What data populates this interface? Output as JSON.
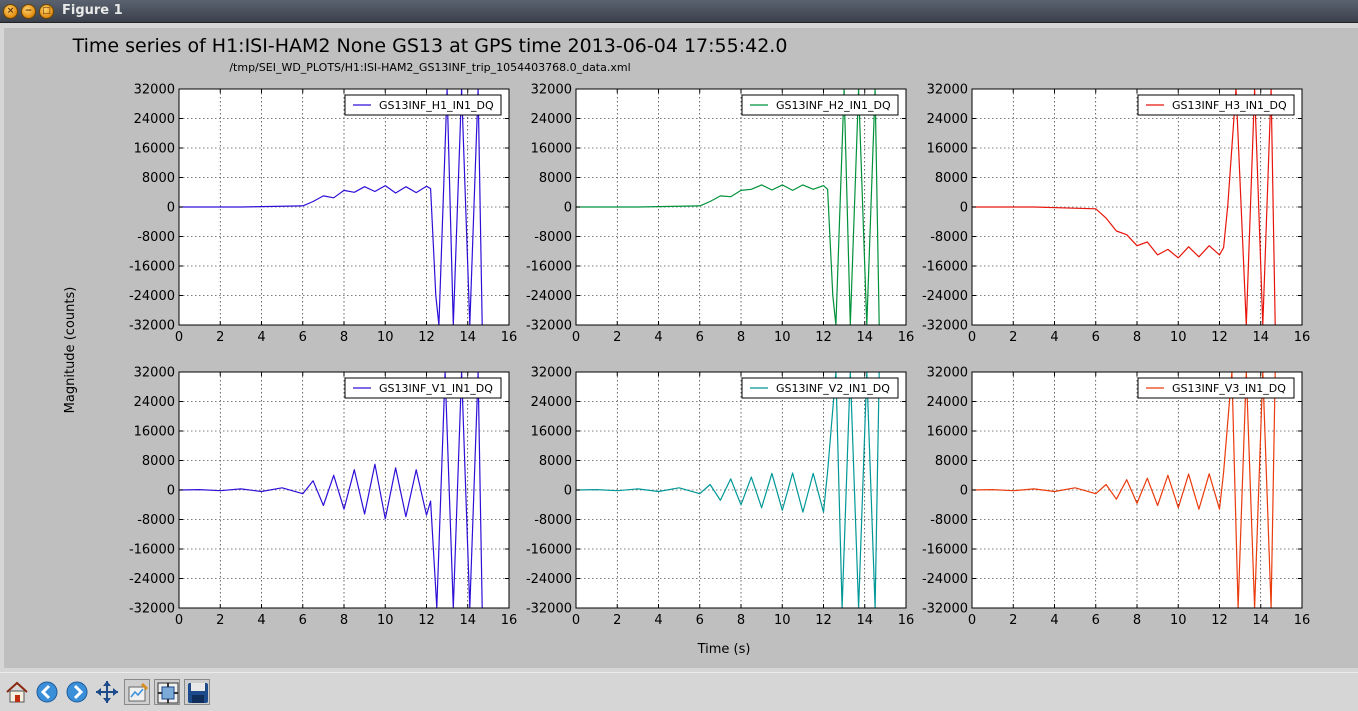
{
  "window": {
    "title": "Figure 1",
    "buttons": [
      "close-icon",
      "minimize-icon",
      "maximize-icon"
    ]
  },
  "toolbar": {
    "icons": [
      "home-icon",
      "back-arrow-icon",
      "forward-arrow-icon",
      "pan-move-icon",
      "configure-icon",
      "subplots-icon",
      "save-icon"
    ]
  },
  "chart_data": {
    "type": "line",
    "title": "Time series of H1:ISI-HAM2 None GS13 at GPS time 2013-06-04 17:55:42.0",
    "subtitle": "/tmp/SEI_WD_PLOTS/H1:ISI-HAM2_GS13INF_trip_1054403768.0_data.xml",
    "xlabel": "Time (s)",
    "ylabel": "Magnitude (counts)",
    "xlim": [
      0,
      16
    ],
    "ylim": [
      -32000,
      32000
    ],
    "xticks": [
      "0",
      "2",
      "4",
      "6",
      "8",
      "10",
      "12",
      "14",
      "16"
    ],
    "yticks": [
      "32000",
      "24000",
      "16000",
      "8000",
      "0",
      "-8000",
      "-16000",
      "-24000",
      "-32000"
    ],
    "grid": true,
    "legend_position": "upper right",
    "subplots": [
      {
        "name": "GS13INF_H1_IN1_DQ",
        "color": "#2d10d8",
        "x": [
          0,
          3,
          6,
          6.5,
          7,
          7.5,
          8,
          8.5,
          9,
          9.5,
          10,
          10.5,
          11,
          11.5,
          12,
          12.2,
          12.45,
          12.6,
          13.0,
          13.3,
          13.7,
          14.1,
          14.5,
          14.7
        ],
        "y": [
          0,
          0,
          300,
          1500,
          3000,
          2500,
          4500,
          4000,
          5500,
          4200,
          5800,
          3800,
          5500,
          3900,
          5600,
          5000,
          -24000,
          -32000,
          32000,
          -32000,
          32000,
          -32000,
          32000,
          -32000
        ]
      },
      {
        "name": "GS13INF_H2_IN1_DQ",
        "color": "#00913a",
        "x": [
          0,
          3,
          6,
          6.5,
          7,
          7.5,
          8,
          8.5,
          9,
          9.5,
          10,
          10.5,
          11,
          11.5,
          12,
          12.2,
          12.45,
          12.6,
          13.0,
          13.3,
          13.7,
          14.1,
          14.5,
          14.7
        ],
        "y": [
          0,
          0,
          300,
          1500,
          3000,
          2800,
          4500,
          4800,
          6000,
          4600,
          6000,
          4500,
          6000,
          4800,
          5800,
          4800,
          -24000,
          -32000,
          32000,
          -32000,
          32000,
          -32000,
          32000,
          -32000
        ]
      },
      {
        "name": "GS13INF_H3_IN1_DQ",
        "color": "#e8150b",
        "x": [
          0,
          3,
          6,
          6.5,
          7,
          7.5,
          8,
          8.5,
          9,
          9.5,
          10,
          10.5,
          11,
          11.5,
          12,
          12.2,
          12.4,
          12.8,
          13.3,
          13.7,
          14.1,
          14.5,
          14.7
        ],
        "y": [
          0,
          0,
          -500,
          -3000,
          -6500,
          -7500,
          -10500,
          -9500,
          -13000,
          -11500,
          -13800,
          -10800,
          -13500,
          -10500,
          -13000,
          -11000,
          500,
          32000,
          -32000,
          32000,
          -32000,
          32000,
          -32000
        ]
      },
      {
        "name": "GS13INF_V1_IN1_DQ",
        "color": "#2d10d8",
        "x": [
          0,
          1,
          2,
          3,
          4,
          5,
          6,
          6.5,
          7,
          7.5,
          8,
          8.5,
          9,
          9.5,
          10,
          10.5,
          11,
          11.5,
          12,
          12.2,
          12.5,
          12.9,
          13.3,
          13.7,
          14.1,
          14.5,
          14.7
        ],
        "y": [
          0,
          100,
          -200,
          300,
          -400,
          600,
          -1000,
          2500,
          -4200,
          4000,
          -5200,
          5500,
          -6500,
          7000,
          -7800,
          6000,
          -7200,
          5500,
          -6800,
          -3000,
          -32000,
          32000,
          -32000,
          32000,
          -32000,
          32000,
          -32000
        ]
      },
      {
        "name": "GS13INF_V2_IN1_DQ",
        "color": "#009797",
        "x": [
          0,
          1,
          2,
          3,
          4,
          5,
          6,
          6.5,
          7,
          7.5,
          8,
          8.5,
          9,
          9.5,
          10,
          10.5,
          11,
          11.5,
          12,
          12.2,
          12.6,
          12.9,
          13.3,
          13.7,
          14.1,
          14.5,
          14.7
        ],
        "y": [
          0,
          100,
          -200,
          300,
          -400,
          600,
          -1000,
          1500,
          -2800,
          3000,
          -4000,
          3500,
          -4800,
          4500,
          -5500,
          4600,
          -6000,
          4500,
          -6000,
          5000,
          32000,
          -32000,
          32000,
          -32000,
          32000,
          -32000,
          32000
        ]
      },
      {
        "name": "GS13INF_V3_IN1_DQ",
        "color": "#ea3b0c",
        "x": [
          0,
          1,
          2,
          3,
          4,
          5,
          6,
          6.5,
          7,
          7.5,
          8,
          8.5,
          9,
          9.5,
          10,
          10.5,
          11,
          11.5,
          12,
          12.2,
          12.6,
          12.9,
          13.3,
          13.7,
          14.1,
          14.5,
          14.7
        ],
        "y": [
          0,
          100,
          -200,
          300,
          -400,
          600,
          -1000,
          1500,
          -2500,
          2800,
          -3600,
          3200,
          -4200,
          4000,
          -4800,
          4300,
          -5200,
          4400,
          -5200,
          4800,
          32000,
          -32000,
          32000,
          -32000,
          32000,
          -32000,
          32000
        ]
      }
    ]
  }
}
